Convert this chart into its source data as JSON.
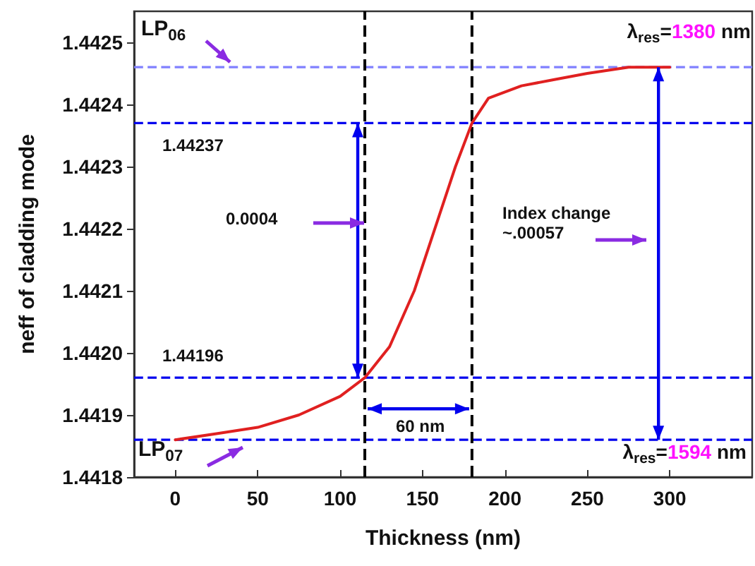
{
  "chart_data": {
    "type": "line",
    "xlabel": "Thickness (nm)",
    "ylabel": "neff of cladding mode",
    "x": [
      0,
      25,
      50,
      75,
      100,
      115,
      130,
      145,
      160,
      170,
      180,
      190,
      210,
      230,
      250,
      275,
      300
    ],
    "series": [
      {
        "color": "#e02020",
        "values": [
          1.44186,
          1.44187,
          1.44188,
          1.4419,
          1.44193,
          1.44196,
          1.44201,
          1.4421,
          1.44222,
          1.4423,
          1.44237,
          1.44241,
          1.44243,
          1.44244,
          1.44245,
          1.44246,
          1.44246
        ]
      }
    ],
    "xlim": [
      -25,
      350
    ],
    "xticks": [
      0,
      50,
      100,
      150,
      200,
      250,
      300
    ],
    "ylim": [
      1.4418,
      1.44255
    ],
    "yticks": [
      {
        "value": 1.4418,
        "label": "1.4418"
      },
      {
        "value": 1.4419,
        "label": "1.4419"
      },
      {
        "value": 1.442,
        "label": "1.4420"
      },
      {
        "value": 1.4421,
        "label": "1.4421"
      },
      {
        "value": 1.4422,
        "label": "1.4422"
      },
      {
        "value": 1.4423,
        "label": "1.4423"
      },
      {
        "value": 1.4424,
        "label": "1.4424"
      },
      {
        "value": 1.4425,
        "label": "1.4425"
      }
    ],
    "ref_lines": [
      {
        "axis": "y",
        "value": 1.44246,
        "color": "#8080ff",
        "line_style": "dashed"
      },
      {
        "axis": "y",
        "value": 1.44237,
        "color": "#0000ee",
        "line_style": "dashed"
      },
      {
        "axis": "y",
        "value": 1.44196,
        "color": "#0000ee",
        "line_style": "dashed"
      },
      {
        "axis": "y",
        "value": 1.44186,
        "color": "#0000ee",
        "line_style": "dashed"
      },
      {
        "axis": "x",
        "value": 115,
        "color": "#000000",
        "line_style": "dashed"
      },
      {
        "axis": "x",
        "value": 180,
        "color": "#000000",
        "line_style": "dashed"
      }
    ],
    "annotations": [
      "LP$_{06}$",
      "λ$_{res}$=1380 nm",
      "1.44237",
      "0.0004",
      "1.44196",
      {
        "text": "60 nm",
        "x": 115,
        "y": 1.44191
      },
      "Index change\n~.00057",
      "LP$_{07}$",
      "λ$_{res}$=1594 nm"
    ],
    "grid": false,
    "marker": "none",
    "line_style": "solid"
  }
}
